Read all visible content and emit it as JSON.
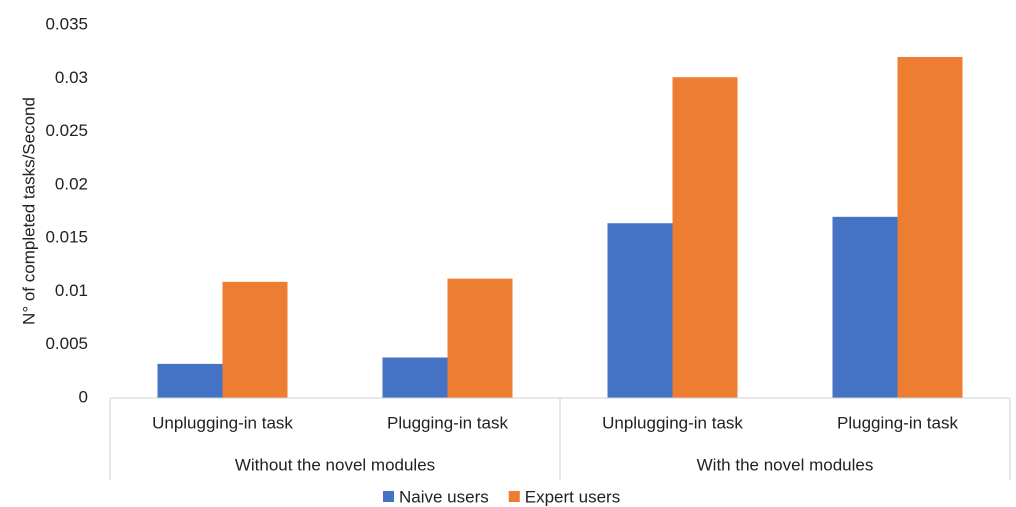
{
  "chart_data": {
    "type": "bar",
    "y_label": "N° of completed tasks/Second",
    "categories": [
      "Unplugging-in task",
      "Plugging-in  task",
      "Unplugging-in task",
      "Plugging-in task"
    ],
    "groups": [
      "Without the novel modules",
      "With the novel modules"
    ],
    "series": [
      {
        "name": "Naive users",
        "color": "#4472c4",
        "values": [
          0.0032,
          0.0038,
          0.0164,
          0.017
        ]
      },
      {
        "name": "Expert users",
        "color": "#ed7d31",
        "values": [
          0.0109,
          0.0112,
          0.0301,
          0.032
        ]
      }
    ],
    "ylim": [
      0,
      0.035
    ],
    "yticks": [
      0,
      0.005,
      0.01,
      0.015,
      0.02,
      0.025,
      0.03,
      0.035
    ],
    "grid": false
  }
}
